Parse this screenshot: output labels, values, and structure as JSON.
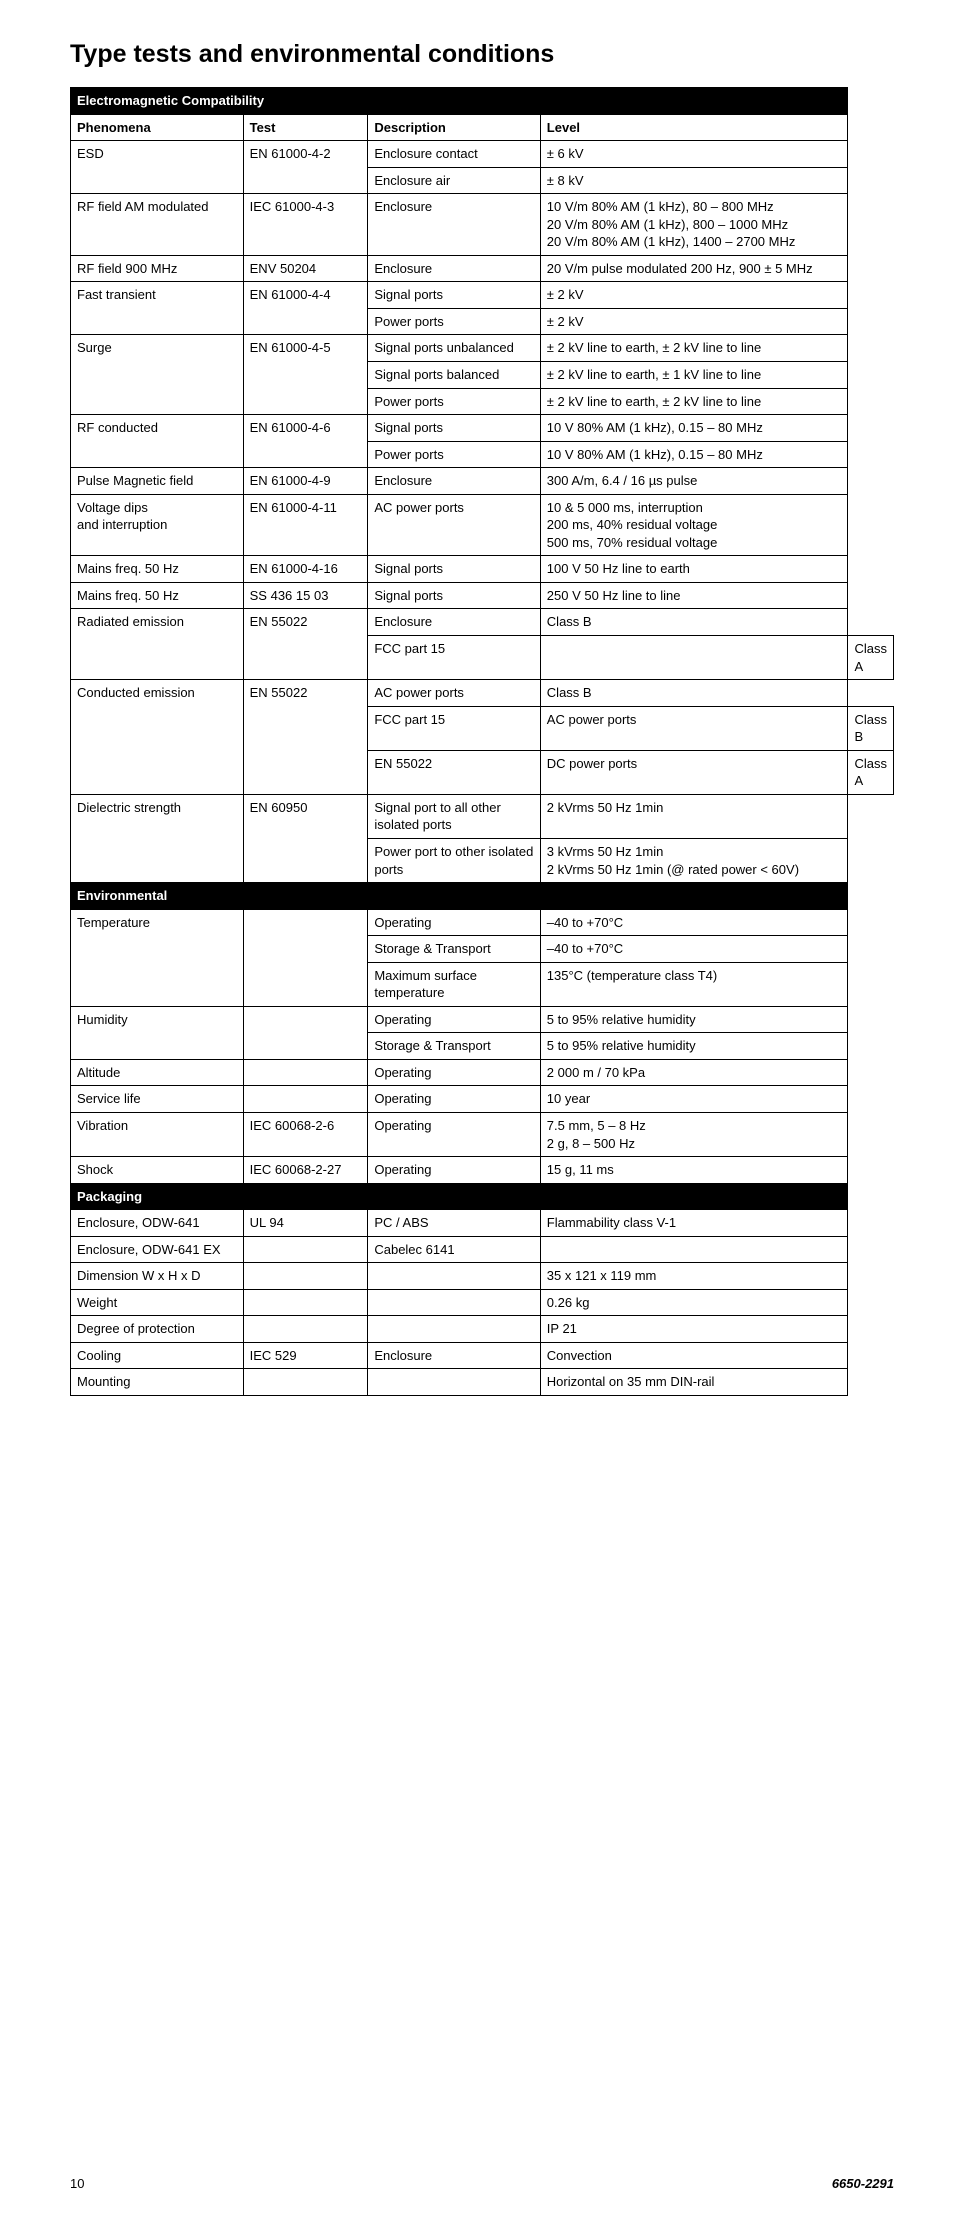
{
  "page_title": "Type tests and environmental conditions",
  "sections": [
    {
      "header": "Electromagnetic Compatibility",
      "col_headers": [
        "Phenomena",
        "Test",
        "Description",
        "Level"
      ],
      "rows": [
        {
          "c1": "ESD",
          "c2": "EN 61000-4-2",
          "c3": "Enclosure contact",
          "c4": "± 6 kV",
          "rs1": 2
        },
        {
          "c3": "Enclosure air",
          "c4": "± 8 kV"
        },
        {
          "c1": "RF field AM modulated",
          "c2": "IEC 61000-4-3",
          "c3": "Enclosure",
          "c4": "10 V/m 80% AM (1 kHz), 80 – 800 MHz\n20 V/m 80% AM (1 kHz), 800 – 1000 MHz\n20 V/m 80% AM (1 kHz), 1400 – 2700 MHz"
        },
        {
          "c1": "RF field 900 MHz",
          "c2": "ENV 50204",
          "c3": "Enclosure",
          "c4": "20 V/m pulse modulated 200 Hz, 900 ± 5 MHz"
        },
        {
          "c1": "Fast transient",
          "c2": "EN 61000-4-4",
          "c3": "Signal ports",
          "c4": "± 2 kV",
          "rs1": 2
        },
        {
          "c3": "Power ports",
          "c4": "± 2 kV"
        },
        {
          "c1": "Surge",
          "c2": "EN 61000-4-5",
          "c3": "Signal ports unbalanced",
          "c4": "± 2 kV line to earth, ± 2 kV line to line",
          "rs1": 3
        },
        {
          "c3": "Signal ports balanced",
          "c4": "± 2 kV line to earth, ± 1 kV line to line"
        },
        {
          "c3": "Power ports",
          "c4": "± 2 kV line to earth, ± 2 kV line to line"
        },
        {
          "c1": "RF conducted",
          "c2": "EN 61000-4-6",
          "c3": "Signal ports",
          "c4": "10 V 80% AM (1 kHz), 0.15 – 80 MHz",
          "rs1": 2
        },
        {
          "c3": "Power ports",
          "c4": "10 V 80% AM (1 kHz), 0.15 – 80 MHz"
        },
        {
          "c1": "Pulse Magnetic field",
          "c2": "EN 61000-4-9",
          "c3": "Enclosure",
          "c4": "300 A/m, 6.4 / 16 µs pulse"
        },
        {
          "c1": "Voltage dips\nand interruption",
          "c2": "EN 61000-4-11",
          "c3": "AC power ports",
          "c4": "10 & 5 000 ms, interruption\n200 ms, 40% residual voltage\n500 ms, 70% residual voltage"
        },
        {
          "c1": "Mains freq. 50 Hz",
          "c2": "EN 61000-4-16",
          "c3": "Signal ports",
          "c4": "100 V 50 Hz line to earth"
        },
        {
          "c1": "Mains freq. 50 Hz",
          "c2": "SS 436 15 03",
          "c3": "Signal ports",
          "c4": "250 V 50 Hz line to line"
        },
        {
          "c1": "Radiated emission",
          "c2": "EN 55022",
          "c3": "Enclosure",
          "c4": "Class B",
          "rs1": 2
        },
        {
          "c2": "FCC part 15",
          "c3": "",
          "c4": "Class A"
        },
        {
          "c1": "Conducted emission",
          "c2": "EN 55022",
          "c3": "AC power ports",
          "c4": "Class B",
          "rs1": 3
        },
        {
          "c2": "FCC part 15",
          "c3": "AC power ports",
          "c4": "Class B"
        },
        {
          "c2": "EN 55022",
          "c3": "DC power ports",
          "c4": "Class A"
        },
        {
          "c1": "Dielectric strength",
          "c2": "EN 60950",
          "c3": "Signal port to all other isolated ports",
          "c4": "2 kVrms 50 Hz 1min",
          "rs1": 2
        },
        {
          "c3": "Power port to other isolated ports",
          "c4": "3 kVrms 50 Hz 1min\n2 kVrms 50 Hz 1min (@ rated power < 60V)"
        }
      ]
    },
    {
      "header": "Environmental",
      "rows": [
        {
          "c1": "Temperature",
          "c2": "",
          "c3": "Operating",
          "c4": "–40 to +70°C",
          "rs1": 3
        },
        {
          "c3": "Storage & Transport",
          "c4": "–40 to +70°C"
        },
        {
          "c3": "Maximum surface temperature",
          "c4": "135°C (temperature class T4)"
        },
        {
          "c1": "Humidity",
          "c2": "",
          "c3": "Operating",
          "c4": "5 to 95% relative humidity",
          "rs1": 2
        },
        {
          "c3": "Storage & Transport",
          "c4": "5 to 95% relative humidity"
        },
        {
          "c1": "Altitude",
          "c2": "",
          "c3": "Operating",
          "c4": "2 000 m / 70 kPa"
        },
        {
          "c1": "Service life",
          "c2": "",
          "c3": "Operating",
          "c4": "10 year"
        },
        {
          "c1": "Vibration",
          "c2": "IEC 60068-2-6",
          "c3": "Operating",
          "c4": "7.5 mm, 5 – 8 Hz\n2 g, 8 – 500 Hz"
        },
        {
          "c1": "Shock",
          "c2": "IEC 60068-2-27",
          "c3": "Operating",
          "c4": "15 g, 11 ms"
        }
      ]
    },
    {
      "header": "Packaging",
      "rows": [
        {
          "c1": "Enclosure, ODW-641",
          "c2": "UL 94",
          "c3": "PC / ABS",
          "c4": "Flammability class V-1"
        },
        {
          "c1": "Enclosure, ODW-641 EX",
          "c2": "",
          "c3": "Cabelec 6141",
          "c4": ""
        },
        {
          "c1": "Dimension W x H x D",
          "c2": "",
          "c3": "",
          "c4": "35 x 121 x 119 mm"
        },
        {
          "c1": "Weight",
          "c2": "",
          "c3": "",
          "c4": "0.26 kg"
        },
        {
          "c1": "Degree of protection",
          "c2": "",
          "c3": "",
          "c4": "IP 21"
        },
        {
          "c1": "Cooling",
          "c2": "IEC 529",
          "c3": "Enclosure",
          "c4": "Convection"
        },
        {
          "c1": "Mounting",
          "c2": "",
          "c3": "",
          "c4": "Horizontal on 35 mm DIN-rail"
        }
      ]
    }
  ],
  "footer": {
    "page": "10",
    "docref": "6650-2291"
  }
}
